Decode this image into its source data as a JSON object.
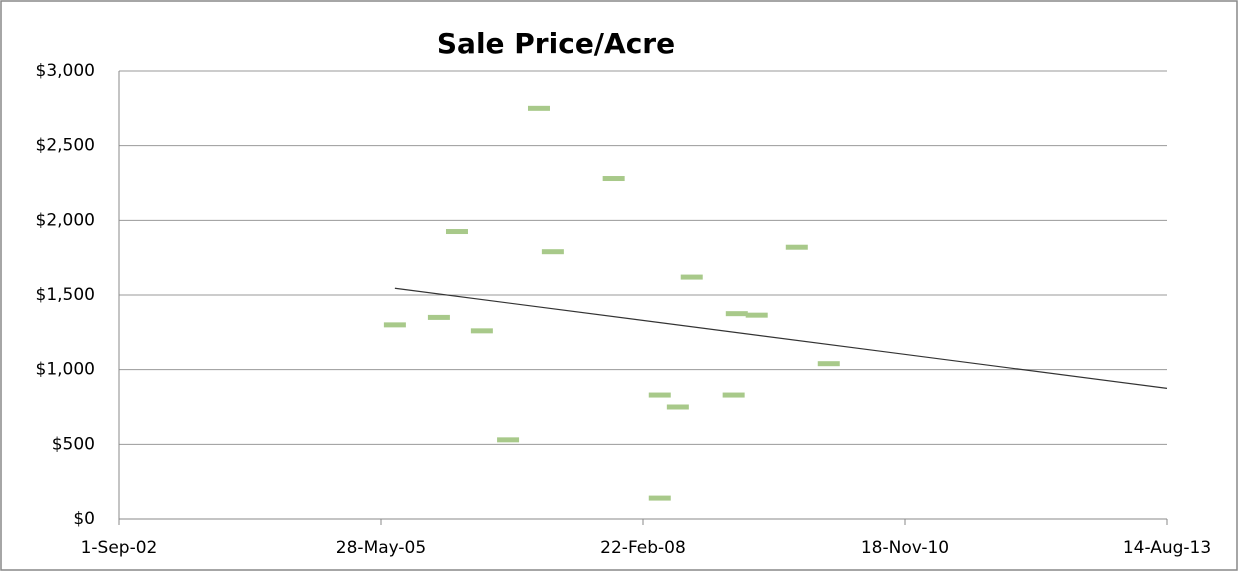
{
  "chart_data": {
    "type": "scatter",
    "title": "Sale Price/Acre",
    "x": [
      "2005-07-20",
      "2006-01-04",
      "2006-03-14",
      "2006-06-17",
      "2006-09-25",
      "2007-01-21",
      "2007-03-15",
      "2007-11-02",
      "2008-04-26",
      "2008-04-26",
      "2008-07-04",
      "2008-08-26",
      "2009-02-14",
      "2009-02-02",
      "2009-05-01",
      "2009-10-01",
      "2010-01-31"
    ],
    "values": [
      1300,
      1350,
      1925,
      1260,
      530,
      2750,
      1790,
      2280,
      830,
      140,
      750,
      1620,
      1375,
      830,
      1365,
      1820,
      1040
    ],
    "color": "#a8c98a",
    "trendline": "linear",
    "xlim": [
      "2002-09-01",
      "2013-08-14"
    ],
    "xticks": [
      {
        "value": "2002-09-01",
        "label": "1-Sep-02"
      },
      {
        "value": "2005-05-28",
        "label": "28-May-05"
      },
      {
        "value": "2008-02-22",
        "label": "22-Feb-08"
      },
      {
        "value": "2010-11-18",
        "label": "18-Nov-10"
      },
      {
        "value": "2013-08-14",
        "label": "14-Aug-13"
      }
    ],
    "ylim": [
      0,
      3000
    ],
    "yticks": [
      {
        "value": 0,
        "label": "$0"
      },
      {
        "value": 500,
        "label": "$500"
      },
      {
        "value": 1000,
        "label": "$1,000"
      },
      {
        "value": 1500,
        "label": "$1,500"
      },
      {
        "value": 2000,
        "label": "$2,000"
      },
      {
        "value": 2500,
        "label": "$2,500"
      },
      {
        "value": 3000,
        "label": "$3,000"
      }
    ],
    "grid": true
  }
}
